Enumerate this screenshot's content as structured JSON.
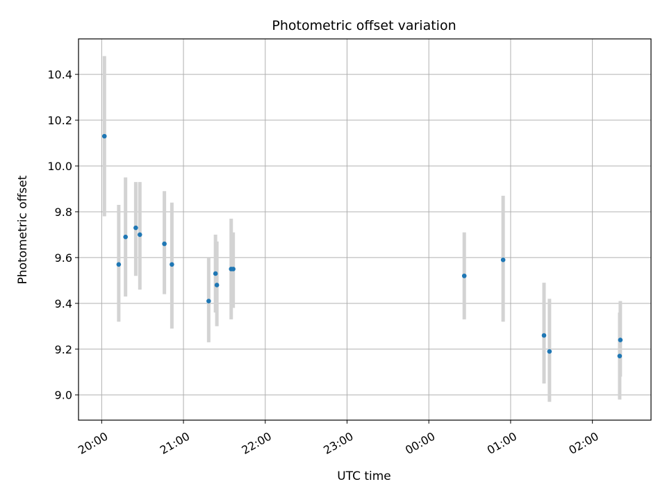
{
  "chart_data": {
    "type": "scatter",
    "title": "Photometric offset variation",
    "xlabel": "UTC time",
    "ylabel": "Photometric offset",
    "x_tick_labels": [
      "20:00",
      "21:00",
      "22:00",
      "23:00",
      "00:00",
      "01:00",
      "02:00"
    ],
    "x_tick_minutes": [
      0,
      60,
      120,
      180,
      240,
      300,
      360
    ],
    "xlim_minutes": [
      -17,
      403
    ],
    "y_ticks": [
      9.0,
      9.2,
      9.4,
      9.6,
      9.8,
      10.0,
      10.2,
      10.4
    ],
    "y_tick_labels": [
      "9.0",
      "9.2",
      "9.4",
      "9.6",
      "9.8",
      "10.0",
      "10.2",
      "10.4"
    ],
    "ylim": [
      8.89,
      10.555
    ],
    "grid": true,
    "marker_color": "#1f77b4",
    "errorbar_color": "#d3d3d3",
    "points": [
      {
        "t": 2,
        "y": 10.13,
        "err_lo": 9.78,
        "err_hi": 10.48
      },
      {
        "t": 12.5,
        "y": 9.57,
        "err_lo": 9.32,
        "err_hi": 9.83
      },
      {
        "t": 17.5,
        "y": 9.69,
        "err_lo": 9.43,
        "err_hi": 9.95
      },
      {
        "t": 25,
        "y": 9.73,
        "err_lo": 9.52,
        "err_hi": 9.93
      },
      {
        "t": 28,
        "y": 9.7,
        "err_lo": 9.46,
        "err_hi": 9.93
      },
      {
        "t": 46,
        "y": 9.66,
        "err_lo": 9.44,
        "err_hi": 9.89
      },
      {
        "t": 51.5,
        "y": 9.57,
        "err_lo": 9.29,
        "err_hi": 9.84
      },
      {
        "t": 78.5,
        "y": 9.41,
        "err_lo": 9.23,
        "err_hi": 9.6
      },
      {
        "t": 83.5,
        "y": 9.53,
        "err_lo": 9.36,
        "err_hi": 9.7
      },
      {
        "t": 84.5,
        "y": 9.48,
        "err_lo": 9.3,
        "err_hi": 9.67
      },
      {
        "t": 95,
        "y": 9.55,
        "err_lo": 9.33,
        "err_hi": 9.77
      },
      {
        "t": 96.5,
        "y": 9.55,
        "err_lo": 9.38,
        "err_hi": 9.71
      },
      {
        "t": 266,
        "y": 9.52,
        "err_lo": 9.33,
        "err_hi": 9.71
      },
      {
        "t": 294.5,
        "y": 9.59,
        "err_lo": 9.32,
        "err_hi": 9.87
      },
      {
        "t": 324.5,
        "y": 9.26,
        "err_lo": 9.05,
        "err_hi": 9.49
      },
      {
        "t": 328.5,
        "y": 9.19,
        "err_lo": 8.97,
        "err_hi": 9.42
      },
      {
        "t": 380.5,
        "y": 9.24,
        "err_lo": 9.08,
        "err_hi": 9.41
      },
      {
        "t": 380,
        "y": 9.17,
        "err_lo": 8.98,
        "err_hi": 9.36
      }
    ]
  }
}
